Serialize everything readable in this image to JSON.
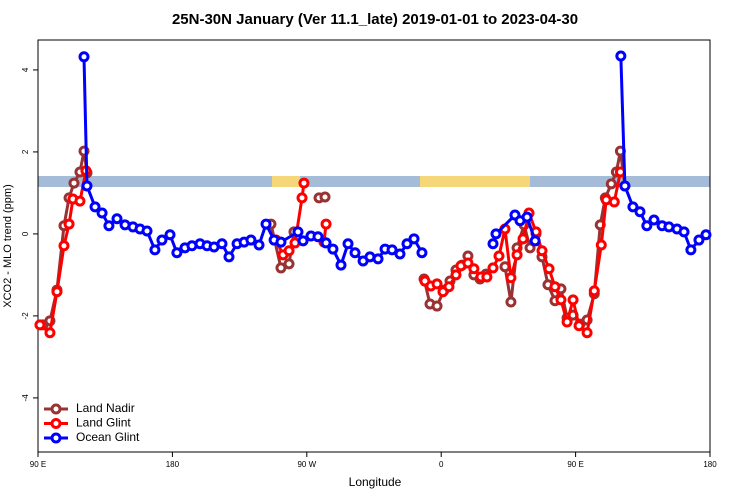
{
  "chart_data": {
    "type": "line",
    "title": "25N-30N January (Ver 11.1_late)   2019-01-01 to 2023-04-30",
    "x_label": "Longitude",
    "y_label": "XCO2 - MLO trend (ppm)",
    "xlim": [
      90,
      540
    ],
    "ylim": [
      -5.32,
      4.73
    ],
    "xticks": [
      {
        "value": 90,
        "label": "90 E"
      },
      180,
      {
        "value": 270,
        "label": "90 W"
      },
      {
        "value": 360,
        "label": "0"
      },
      {
        "value": 450,
        "label": "90 E"
      },
      {
        "value": 540,
        "label": "180"
      }
    ],
    "yticks": [
      -4,
      -2,
      0,
      2,
      4
    ],
    "legend": "bottom-left",
    "series": [
      {
        "name": "Land Nadir",
        "color": "#993333",
        "x": [
          93.3,
          98,
          102.7,
          107.4,
          110.8,
          114.1,
          118.1,
          120.8,
          122.8,
          null,
          246,
          252.7,
          258.1,
          261.4,
          null,
          278.2,
          282.2,
          null,
          348.5,
          352.5,
          357.2,
          361.9,
          365.9,
          369.9,
          374,
          377.9,
          381.9,
          386,
          390,
          null,
          402.7,
          406.7,
          410.8,
          415.5,
          419.5,
          423.5,
          427.5,
          431.5,
          436.2,
          440.2,
          444.3,
          448.3,
          452.9,
          457.7,
          462.5,
          466.5,
          469.9,
          473.9,
          477.3,
          480,
          483
        ],
        "values": [
          -2.22,
          -2.12,
          -1.37,
          0.2,
          0.88,
          1.24,
          1.51,
          2.02,
          1.49,
          null,
          0.24,
          -0.83,
          -0.73,
          0.05,
          null,
          0.88,
          0.9,
          null,
          -1.1,
          -1.71,
          -1.76,
          -1.37,
          -1.15,
          -0.88,
          -0.76,
          -0.54,
          -1.0,
          -1.1,
          -0.98,
          null,
          -0.8,
          -1.66,
          -0.34,
          0.22,
          -0.34,
          0,
          -0.56,
          -1.24,
          -1.63,
          -1.34,
          -2.05,
          -1.98,
          -2.2,
          -2.1,
          -1.46,
          0.22,
          0.88,
          1.22,
          1.51,
          2.02,
          1.17
        ]
      },
      {
        "name": "Land Glint",
        "color": "#ff0000",
        "x": [
          91.3,
          98,
          102.7,
          107.4,
          110.8,
          113.4,
          118.1,
          122.1,
          null,
          249.4,
          254.1,
          258.1,
          262.1,
          266.8,
          268.1,
          null,
          281.5,
          282.9,
          null,
          349.1,
          353.1,
          357.2,
          361.2,
          365.2,
          369.9,
          373.2,
          377.9,
          381.9,
          386.6,
          390.6,
          394.7,
          398.7,
          402.7,
          406.7,
          410.8,
          414.8,
          418.8,
          423.5,
          427.5,
          432.2,
          436.2,
          440.2,
          444.3,
          448.3,
          452.3,
          457.7,
          462.5,
          467.2,
          470.5,
          475.9,
          480
        ],
        "values": [
          -2.22,
          -2.41,
          -1.41,
          -0.29,
          0.24,
          0.85,
          0.8,
          1.54,
          null,
          -0.15,
          -0.51,
          -0.41,
          -0.22,
          0.88,
          1.24,
          null,
          -0.2,
          0.24,
          null,
          -1.15,
          -1.27,
          -1.22,
          -1.41,
          -1.29,
          -1.0,
          -0.78,
          -0.71,
          -0.85,
          -1.05,
          -1.05,
          -0.83,
          -0.54,
          0.12,
          -1.07,
          -0.51,
          -0.12,
          0.51,
          0.05,
          -0.41,
          -0.85,
          -1.29,
          -1.61,
          -2.15,
          -1.61,
          -2.24,
          -2.41,
          -1.39,
          -0.27,
          0.83,
          0.78,
          1.51
        ]
      },
      {
        "name": "Ocean Glint",
        "color": "#0000ff",
        "x": [
          120.8,
          122.8,
          128.2,
          132.9,
          137.5,
          142.9,
          148.3,
          153.6,
          158.3,
          163,
          168.3,
          173,
          178.4,
          183,
          188.4,
          193.1,
          198.5,
          203.2,
          207.9,
          213.2,
          217.9,
          223.3,
          228,
          232.6,
          238,
          242.7,
          248.1,
          252.7,
          264.1,
          267.5,
          272.8,
          277.5,
          282.9,
          287.5,
          292.9,
          297.6,
          302.3,
          307.7,
          312.3,
          317.7,
          322.4,
          327.1,
          332.4,
          337.1,
          341.8,
          347.1,
          null,
          394.7,
          396.7,
          409.4,
          412.8,
          417.5,
          422.9,
          null,
          480.3,
          483,
          488.4,
          493.1,
          497.7,
          502.5,
          507.9,
          512.5,
          517.9,
          522.6,
          527.2,
          532.6,
          537.3
        ],
        "values": [
          4.32,
          1.17,
          0.66,
          0.51,
          0.2,
          0.37,
          0.22,
          0.17,
          0.12,
          0.07,
          -0.39,
          -0.15,
          -0.02,
          -0.46,
          -0.34,
          -0.29,
          -0.24,
          -0.29,
          -0.32,
          -0.24,
          -0.56,
          -0.24,
          -0.2,
          -0.15,
          -0.27,
          0.24,
          -0.15,
          -0.2,
          0.05,
          -0.17,
          -0.05,
          -0.07,
          -0.22,
          -0.37,
          -0.76,
          -0.24,
          -0.46,
          -0.66,
          -0.56,
          -0.61,
          -0.37,
          -0.39,
          -0.49,
          -0.24,
          -0.12,
          -0.46,
          null,
          -0.24,
          0,
          0.46,
          0.32,
          0.41,
          -0.17,
          null,
          4.34,
          1.17,
          0.66,
          0.54,
          0.2,
          0.34,
          0.2,
          0.17,
          0.12,
          0.05,
          -0.39,
          -0.15,
          -0.02
        ]
      }
    ]
  }
}
